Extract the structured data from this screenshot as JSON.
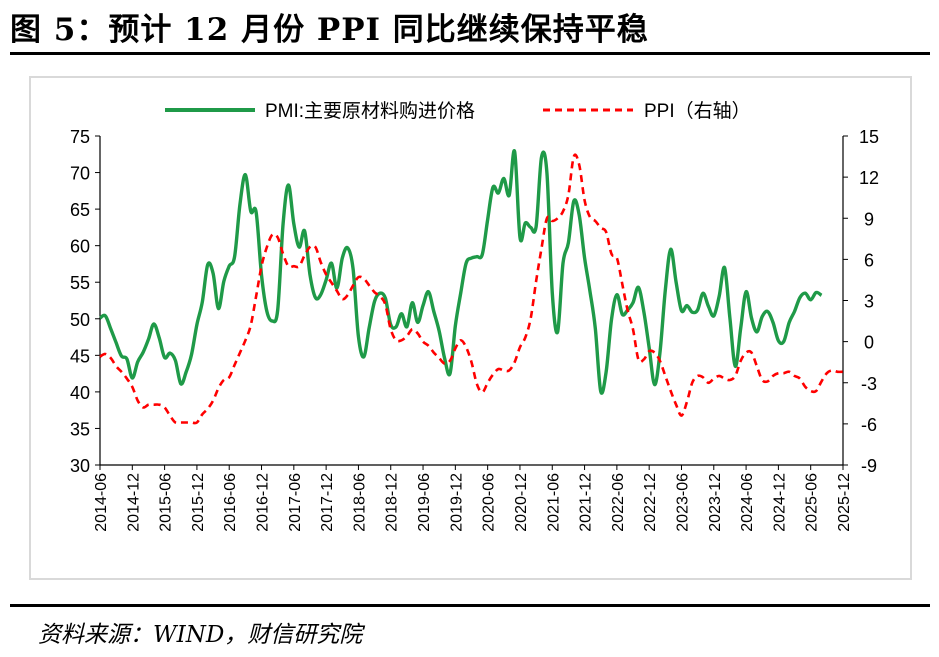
{
  "figure": {
    "title": "图 5：预计 12 月份 PPI 同比继续保持平稳",
    "source": "资料来源：WIND，财信研究院"
  },
  "chart_data": {
    "type": "line",
    "x_labels": [
      "2014-06",
      "2014-12",
      "2015-06",
      "2015-12",
      "2016-06",
      "2016-12",
      "2017-06",
      "2017-12",
      "2018-06",
      "2018-12",
      "2019-06",
      "2019-12",
      "2020-06",
      "2020-12",
      "2021-06",
      "2021-12",
      "2022-06",
      "2022-12",
      "2023-06",
      "2023-12",
      "2024-06",
      "2024-12",
      "2025-06",
      "2025-12"
    ],
    "y_left": {
      "range": [
        30,
        75
      ],
      "ticks": [
        30,
        35,
        40,
        45,
        50,
        55,
        60,
        65,
        70,
        75
      ]
    },
    "y_right": {
      "range": [
        -9,
        15
      ],
      "ticks": [
        -9,
        -6,
        -3,
        0,
        3,
        6,
        9,
        12,
        15
      ]
    },
    "legend_position": "top-center",
    "grid": false,
    "series": [
      {
        "name": "PMI:主要原材料购进价格",
        "axis": "left",
        "color": "#1f9a48",
        "style": "solid",
        "points": [
          [
            "2014-06",
            50.1
          ],
          [
            "2014-07",
            50.4
          ],
          [
            "2014-08",
            48.6
          ],
          [
            "2014-09",
            46.7
          ],
          [
            "2014-10",
            44.9
          ],
          [
            "2014-11",
            44.5
          ],
          [
            "2014-12",
            41.9
          ],
          [
            "2015-01",
            44.1
          ],
          [
            "2015-02",
            45.4
          ],
          [
            "2015-03",
            47.2
          ],
          [
            "2015-04",
            49.3
          ],
          [
            "2015-05",
            47.4
          ],
          [
            "2015-06",
            44.7
          ],
          [
            "2015-07",
            45.3
          ],
          [
            "2015-08",
            44.3
          ],
          [
            "2015-09",
            41.1
          ],
          [
            "2015-10",
            42.7
          ],
          [
            "2015-11",
            45.1
          ],
          [
            "2015-12",
            49.2
          ],
          [
            "2016-01",
            52.3
          ],
          [
            "2016-02",
            57.4
          ],
          [
            "2016-03",
            56.2
          ],
          [
            "2016-04",
            51.4
          ],
          [
            "2016-05",
            55.1
          ],
          [
            "2016-06",
            57.2
          ],
          [
            "2016-07",
            58.5
          ],
          [
            "2016-08",
            65.7
          ],
          [
            "2016-09",
            69.7
          ],
          [
            "2016-10",
            64.7
          ],
          [
            "2016-11",
            64.6
          ],
          [
            "2016-12",
            56.0
          ],
          [
            "2017-01",
            51.0
          ],
          [
            "2017-02",
            49.7
          ],
          [
            "2017-03",
            51.2
          ],
          [
            "2017-04",
            63.0
          ],
          [
            "2017-05",
            68.3
          ],
          [
            "2017-06",
            63.0
          ],
          [
            "2017-07",
            59.8
          ],
          [
            "2017-08",
            62.0
          ],
          [
            "2017-09",
            56.0
          ],
          [
            "2017-10",
            52.9
          ],
          [
            "2017-11",
            53.3
          ],
          [
            "2017-12",
            55.3
          ],
          [
            "2018-01",
            57.6
          ],
          [
            "2018-02",
            54.2
          ],
          [
            "2018-03",
            58.3
          ],
          [
            "2018-04",
            59.7
          ],
          [
            "2018-05",
            56.8
          ],
          [
            "2018-06",
            47.6
          ],
          [
            "2018-07",
            44.8
          ],
          [
            "2018-08",
            48.8
          ],
          [
            "2018-09",
            52.4
          ],
          [
            "2018-10",
            53.5
          ],
          [
            "2018-11",
            52.8
          ],
          [
            "2018-12",
            49.2
          ],
          [
            "2019-01",
            48.9
          ],
          [
            "2019-02",
            50.7
          ],
          [
            "2019-03",
            48.9
          ],
          [
            "2019-04",
            52.2
          ],
          [
            "2019-05",
            49.5
          ],
          [
            "2019-06",
            51.8
          ],
          [
            "2019-07",
            53.7
          ],
          [
            "2019-08",
            51.0
          ],
          [
            "2019-09",
            48.3
          ],
          [
            "2019-10",
            44.6
          ],
          [
            "2019-11",
            42.5
          ],
          [
            "2019-12",
            49.0
          ],
          [
            "2020-01",
            53.5
          ],
          [
            "2020-02",
            57.6
          ],
          [
            "2020-03",
            58.3
          ],
          [
            "2020-04",
            58.5
          ],
          [
            "2020-05",
            58.8
          ],
          [
            "2020-06",
            63.6
          ],
          [
            "2020-07",
            68.0
          ],
          [
            "2020-08",
            67.2
          ],
          [
            "2020-09",
            69.2
          ],
          [
            "2020-10",
            66.9
          ],
          [
            "2020-11",
            72.9
          ],
          [
            "2020-12",
            61.1
          ],
          [
            "2021-01",
            63.1
          ],
          [
            "2021-02",
            62.5
          ],
          [
            "2021-03",
            62.6
          ],
          [
            "2021-04",
            72.1
          ],
          [
            "2021-05",
            70.0
          ],
          [
            "2021-06",
            53.5
          ],
          [
            "2021-07",
            48.2
          ],
          [
            "2021-08",
            57.6
          ],
          [
            "2021-09",
            60.4
          ],
          [
            "2021-10",
            66.1
          ],
          [
            "2021-11",
            64.2
          ],
          [
            "2021-12",
            58.3
          ],
          [
            "2022-01",
            53.8
          ],
          [
            "2022-02",
            48.7
          ],
          [
            "2022-03",
            40.1
          ],
          [
            "2022-04",
            42.7
          ],
          [
            "2022-05",
            49.9
          ],
          [
            "2022-06",
            53.3
          ],
          [
            "2022-07",
            50.6
          ],
          [
            "2022-08",
            51.2
          ],
          [
            "2022-09",
            52.2
          ],
          [
            "2022-10",
            54.3
          ],
          [
            "2022-11",
            51.0
          ],
          [
            "2022-12",
            46.0
          ],
          [
            "2023-01",
            41.0
          ],
          [
            "2023-02",
            45.3
          ],
          [
            "2023-03",
            53.9
          ],
          [
            "2023-04",
            59.5
          ],
          [
            "2023-05",
            55.0
          ],
          [
            "2023-06",
            51.1
          ],
          [
            "2023-07",
            51.8
          ],
          [
            "2023-08",
            50.9
          ],
          [
            "2023-09",
            51.2
          ],
          [
            "2023-10",
            53.5
          ],
          [
            "2023-11",
            51.7
          ],
          [
            "2023-12",
            50.4
          ],
          [
            "2024-01",
            53.1
          ],
          [
            "2024-02",
            57.0
          ],
          [
            "2024-03",
            50.1
          ],
          [
            "2024-04",
            43.5
          ],
          [
            "2024-05",
            48.7
          ],
          [
            "2024-06",
            53.7
          ],
          [
            "2024-07",
            50.1
          ],
          [
            "2024-08",
            48.2
          ],
          [
            "2024-09",
            50.3
          ],
          [
            "2024-10",
            51.0
          ],
          [
            "2024-11",
            49.5
          ],
          [
            "2024-12",
            47.0
          ],
          [
            "2025-01",
            46.9
          ],
          [
            "2025-02",
            49.5
          ],
          [
            "2025-03",
            51.0
          ],
          [
            "2025-04",
            52.9
          ],
          [
            "2025-05",
            53.5
          ],
          [
            "2025-06",
            52.6
          ],
          [
            "2025-07",
            53.6
          ],
          [
            "2025-08",
            53.2
          ]
        ]
      },
      {
        "name": "PPI（右轴）",
        "axis": "right",
        "color": "#ff0000",
        "style": "dashed",
        "points": [
          [
            "2014-06",
            -1.1
          ],
          [
            "2014-07",
            -0.9
          ],
          [
            "2014-08",
            -1.2
          ],
          [
            "2014-09",
            -1.8
          ],
          [
            "2014-10",
            -2.2
          ],
          [
            "2014-11",
            -2.7
          ],
          [
            "2014-12",
            -3.3
          ],
          [
            "2015-01",
            -4.3
          ],
          [
            "2015-02",
            -4.8
          ],
          [
            "2015-03",
            -4.6
          ],
          [
            "2015-04",
            -4.6
          ],
          [
            "2015-05",
            -4.6
          ],
          [
            "2015-06",
            -4.8
          ],
          [
            "2015-07",
            -5.4
          ],
          [
            "2015-08",
            -5.9
          ],
          [
            "2015-09",
            -5.9
          ],
          [
            "2015-10",
            -5.9
          ],
          [
            "2015-11",
            -5.9
          ],
          [
            "2015-12",
            -5.9
          ],
          [
            "2016-01",
            -5.3
          ],
          [
            "2016-02",
            -4.9
          ],
          [
            "2016-03",
            -4.3
          ],
          [
            "2016-04",
            -3.4
          ],
          [
            "2016-05",
            -2.8
          ],
          [
            "2016-06",
            -2.6
          ],
          [
            "2016-07",
            -1.7
          ],
          [
            "2016-08",
            -0.8
          ],
          [
            "2016-09",
            0.1
          ],
          [
            "2016-10",
            1.2
          ],
          [
            "2016-11",
            3.3
          ],
          [
            "2016-12",
            5.5
          ],
          [
            "2017-01",
            6.9
          ],
          [
            "2017-02",
            7.8
          ],
          [
            "2017-03",
            7.6
          ],
          [
            "2017-04",
            6.4
          ],
          [
            "2017-05",
            5.5
          ],
          [
            "2017-06",
            5.5
          ],
          [
            "2017-07",
            5.5
          ],
          [
            "2017-08",
            6.3
          ],
          [
            "2017-09",
            6.9
          ],
          [
            "2017-10",
            6.9
          ],
          [
            "2017-11",
            5.8
          ],
          [
            "2017-12",
            4.9
          ],
          [
            "2018-01",
            4.3
          ],
          [
            "2018-02",
            3.7
          ],
          [
            "2018-03",
            3.1
          ],
          [
            "2018-04",
            3.4
          ],
          [
            "2018-05",
            4.1
          ],
          [
            "2018-06",
            4.7
          ],
          [
            "2018-07",
            4.6
          ],
          [
            "2018-08",
            4.1
          ],
          [
            "2018-09",
            3.6
          ],
          [
            "2018-10",
            3.3
          ],
          [
            "2018-11",
            2.7
          ],
          [
            "2018-12",
            0.9
          ],
          [
            "2019-01",
            0.1
          ],
          [
            "2019-02",
            0.1
          ],
          [
            "2019-03",
            0.4
          ],
          [
            "2019-04",
            0.9
          ],
          [
            "2019-05",
            0.6
          ],
          [
            "2019-06",
            0.0
          ],
          [
            "2019-07",
            -0.3
          ],
          [
            "2019-08",
            -0.8
          ],
          [
            "2019-09",
            -1.2
          ],
          [
            "2019-10",
            -1.6
          ],
          [
            "2019-11",
            -1.4
          ],
          [
            "2019-12",
            -0.5
          ],
          [
            "2020-01",
            0.1
          ],
          [
            "2020-02",
            -0.4
          ],
          [
            "2020-03",
            -1.5
          ],
          [
            "2020-04",
            -3.1
          ],
          [
            "2020-05",
            -3.7
          ],
          [
            "2020-06",
            -3.0
          ],
          [
            "2020-07",
            -2.4
          ],
          [
            "2020-08",
            -2.0
          ],
          [
            "2020-09",
            -2.1
          ],
          [
            "2020-10",
            -2.1
          ],
          [
            "2020-11",
            -1.5
          ],
          [
            "2020-12",
            -0.4
          ],
          [
            "2021-01",
            0.3
          ],
          [
            "2021-02",
            1.7
          ],
          [
            "2021-03",
            4.4
          ],
          [
            "2021-04",
            6.8
          ],
          [
            "2021-05",
            9.0
          ],
          [
            "2021-06",
            8.8
          ],
          [
            "2021-07",
            9.0
          ],
          [
            "2021-08",
            9.5
          ],
          [
            "2021-09",
            10.7
          ],
          [
            "2021-10",
            13.5
          ],
          [
            "2021-11",
            12.9
          ],
          [
            "2021-12",
            10.3
          ],
          [
            "2022-01",
            9.1
          ],
          [
            "2022-02",
            8.8
          ],
          [
            "2022-03",
            8.3
          ],
          [
            "2022-04",
            8.0
          ],
          [
            "2022-05",
            6.4
          ],
          [
            "2022-06",
            6.1
          ],
          [
            "2022-07",
            4.2
          ],
          [
            "2022-08",
            2.3
          ],
          [
            "2022-09",
            0.9
          ],
          [
            "2022-10",
            -1.3
          ],
          [
            "2022-11",
            -1.3
          ],
          [
            "2022-12",
            -0.7
          ],
          [
            "2023-01",
            -0.8
          ],
          [
            "2023-02",
            -1.4
          ],
          [
            "2023-03",
            -2.5
          ],
          [
            "2023-04",
            -3.6
          ],
          [
            "2023-05",
            -4.6
          ],
          [
            "2023-06",
            -5.4
          ],
          [
            "2023-07",
            -4.4
          ],
          [
            "2023-08",
            -3.0
          ],
          [
            "2023-09",
            -2.5
          ],
          [
            "2023-10",
            -2.6
          ],
          [
            "2023-11",
            -3.0
          ],
          [
            "2023-12",
            -2.7
          ],
          [
            "2024-01",
            -2.5
          ],
          [
            "2024-02",
            -2.7
          ],
          [
            "2024-03",
            -2.8
          ],
          [
            "2024-04",
            -2.5
          ],
          [
            "2024-05",
            -1.4
          ],
          [
            "2024-06",
            -0.8
          ],
          [
            "2024-07",
            -0.8
          ],
          [
            "2024-08",
            -1.8
          ],
          [
            "2024-09",
            -2.8
          ],
          [
            "2024-10",
            -2.9
          ],
          [
            "2024-11",
            -2.5
          ],
          [
            "2024-12",
            -2.3
          ],
          [
            "2025-01",
            -2.3
          ],
          [
            "2025-02",
            -2.2
          ],
          [
            "2025-03",
            -2.5
          ],
          [
            "2025-04",
            -2.7
          ],
          [
            "2025-05",
            -3.3
          ],
          [
            "2025-06",
            -3.6
          ],
          [
            "2025-07",
            -3.6
          ],
          [
            "2025-08",
            -2.9
          ],
          [
            "2025-09",
            -2.3
          ],
          [
            "2025-10",
            -2.1
          ],
          [
            "2025-11",
            -2.2
          ],
          [
            "2025-12",
            -2.2
          ]
        ]
      }
    ]
  }
}
